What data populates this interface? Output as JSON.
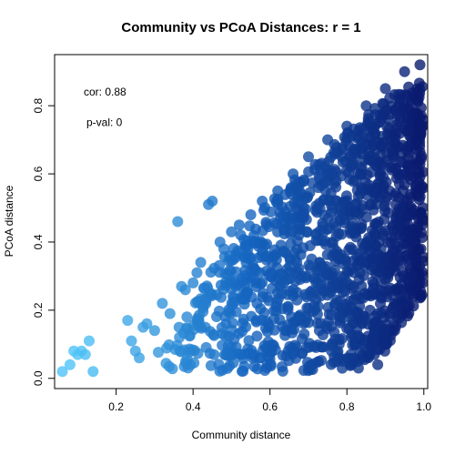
{
  "chart_data": {
    "type": "scatter",
    "title": "Community vs PCoA Distances: r = 1",
    "xlabel": "Community distance",
    "ylabel": "PCoA distance",
    "xlim": [
      0.04,
      1.01
    ],
    "ylim": [
      -0.03,
      0.95
    ],
    "x_ticks": [
      0.2,
      0.4,
      0.6,
      0.8,
      1.0
    ],
    "x_tick_labels": [
      "0.2",
      "0.4",
      "0.6",
      "0.8",
      "1.0"
    ],
    "y_ticks": [
      0.0,
      0.2,
      0.4,
      0.6,
      0.8
    ],
    "y_tick_labels": [
      "0.0",
      "0.2",
      "0.4",
      "0.6",
      "0.8"
    ],
    "grid": false,
    "legend": "none",
    "annotations": [
      {
        "label": "cor: 0.88",
        "x": 0.1,
        "y": 0.83
      },
      {
        "label": "p-val: 0",
        "x": 0.1,
        "y": 0.74
      }
    ],
    "color_gradient": {
      "low": "#4fc3f7",
      "mid": "#1565c0",
      "high": "#0a1a6e"
    },
    "envelope": {
      "description": "dense point cloud; upper and lower bounds of PCoA distance as a function of community distance",
      "x": [
        0.3,
        0.4,
        0.5,
        0.6,
        0.7,
        0.8,
        0.9,
        1.0
      ],
      "y_lower": [
        0.03,
        0.02,
        0.02,
        0.02,
        0.02,
        0.03,
        0.08,
        0.25
      ],
      "y_upper": [
        0.12,
        0.24,
        0.4,
        0.52,
        0.62,
        0.72,
        0.82,
        0.88
      ]
    },
    "points": [
      [
        0.06,
        0.02
      ],
      [
        0.08,
        0.04
      ],
      [
        0.09,
        0.08
      ],
      [
        0.1,
        0.07
      ],
      [
        0.11,
        0.08
      ],
      [
        0.12,
        0.07
      ],
      [
        0.13,
        0.11
      ],
      [
        0.14,
        0.02
      ],
      [
        0.23,
        0.17
      ],
      [
        0.24,
        0.11
      ],
      [
        0.25,
        0.08
      ],
      [
        0.26,
        0.06
      ],
      [
        0.27,
        0.15
      ],
      [
        0.28,
        0.16
      ],
      [
        0.3,
        0.14
      ],
      [
        0.32,
        0.22
      ],
      [
        0.34,
        0.19
      ],
      [
        0.36,
        0.46
      ],
      [
        0.37,
        0.27
      ],
      [
        0.38,
        0.26
      ],
      [
        0.4,
        0.28
      ],
      [
        0.41,
        0.31
      ],
      [
        0.42,
        0.34
      ],
      [
        0.44,
        0.51
      ],
      [
        0.45,
        0.52
      ],
      [
        0.47,
        0.4
      ],
      [
        0.48,
        0.38
      ],
      [
        0.5,
        0.43
      ],
      [
        0.52,
        0.45
      ],
      [
        0.55,
        0.48
      ],
      [
        0.58,
        0.52
      ],
      [
        0.62,
        0.55
      ],
      [
        0.66,
        0.6
      ],
      [
        0.7,
        0.65
      ],
      [
        0.75,
        0.7
      ],
      [
        0.8,
        0.74
      ],
      [
        0.85,
        0.8
      ],
      [
        0.9,
        0.85
      ],
      [
        0.95,
        0.9
      ],
      [
        0.99,
        0.92
      ],
      [
        0.76,
        0.08
      ],
      [
        0.78,
        0.1
      ],
      [
        0.79,
        0.05
      ],
      [
        0.82,
        0.12
      ],
      [
        0.84,
        0.16
      ],
      [
        0.86,
        0.2
      ],
      [
        0.88,
        0.19
      ],
      [
        0.9,
        0.14
      ],
      [
        0.93,
        0.18
      ],
      [
        0.95,
        0.22
      ],
      [
        0.97,
        0.3
      ],
      [
        0.99,
        0.28
      ],
      [
        0.88,
        0.04
      ],
      [
        0.81,
        0.07
      ],
      [
        0.83,
        0.03
      ]
    ]
  }
}
